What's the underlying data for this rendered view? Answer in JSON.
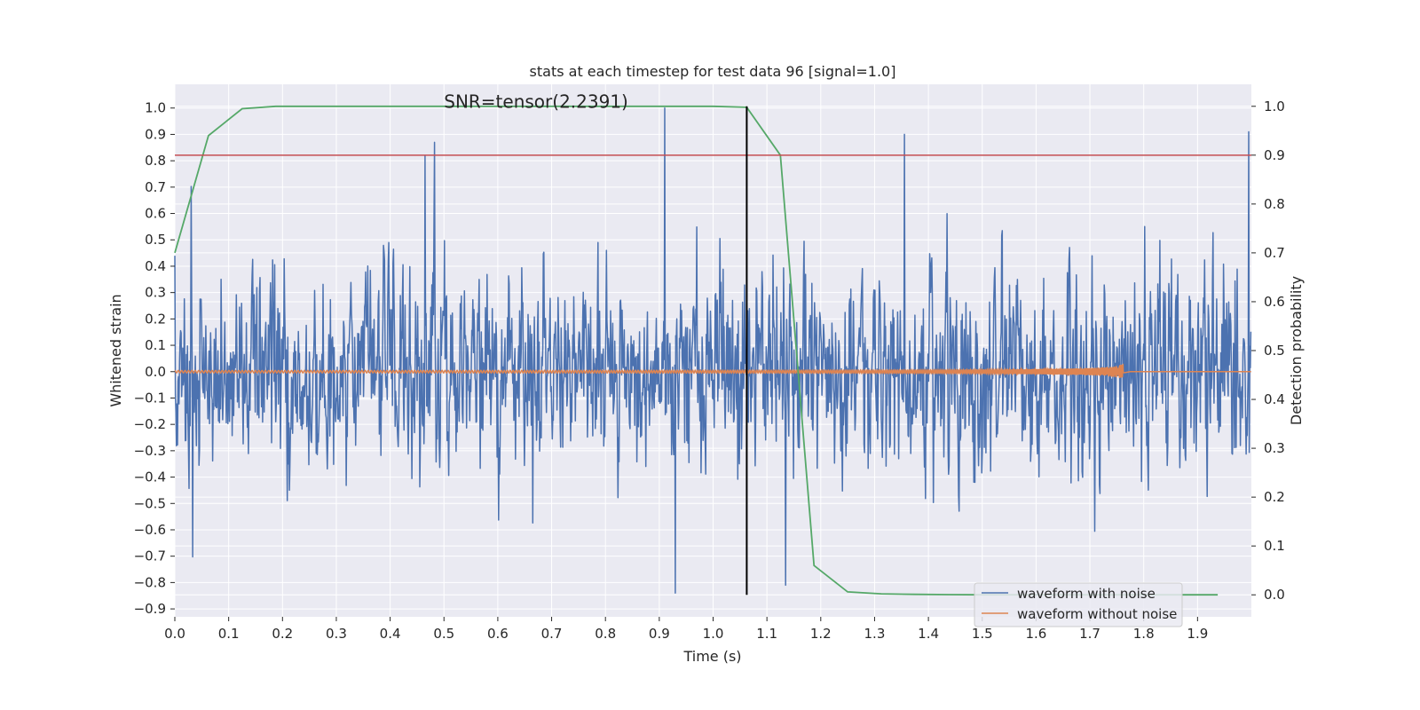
{
  "chart_data": {
    "type": "line",
    "title": "stats at each timestep for test data 96 [signal=1.0]",
    "annotation": "SNR=tensor(2.2391)",
    "annotation_at": {
      "x": 0.5,
      "y": 1.0
    },
    "xlabel": "Time (s)",
    "ylabel_left": "Whitened strain",
    "ylabel_right": "Detection probability",
    "xlim": [
      0,
      2.0
    ],
    "ylim_left": [
      -0.93,
      1.09
    ],
    "ylim_right": [
      -0.045,
      1.045
    ],
    "x_ticks": [
      0.0,
      0.1,
      0.2,
      0.3,
      0.4,
      0.5,
      0.6,
      0.7,
      0.8,
      0.9,
      1.0,
      1.1,
      1.2,
      1.3,
      1.4,
      1.5,
      1.6,
      1.7,
      1.8,
      1.9
    ],
    "x_tick_labels": [
      "0.0",
      "0.1",
      "0.2",
      "0.3",
      "0.4",
      "0.5",
      "0.6",
      "0.7",
      "0.8",
      "0.9",
      "1.0",
      "1.1",
      "1.2",
      "1.3",
      "1.4",
      "1.5",
      "1.6",
      "1.7",
      "1.8",
      "1.9"
    ],
    "y_left_ticks": [
      -0.9,
      -0.8,
      -0.7,
      -0.6,
      -0.5,
      -0.4,
      -0.3,
      -0.2,
      -0.1,
      0.0,
      0.1,
      0.2,
      0.3,
      0.4,
      0.5,
      0.6,
      0.7,
      0.8,
      0.9,
      1.0
    ],
    "y_left_tick_labels": [
      "−0.9",
      "−0.8",
      "−0.7",
      "−0.6",
      "−0.5",
      "−0.4",
      "−0.3",
      "−0.2",
      "−0.1",
      "0.0",
      "0.1",
      "0.2",
      "0.3",
      "0.4",
      "0.5",
      "0.6",
      "0.7",
      "0.8",
      "0.9",
      "1.0"
    ],
    "y_right_ticks": [
      0.0,
      0.1,
      0.2,
      0.3,
      0.4,
      0.5,
      0.6,
      0.7,
      0.8,
      0.9,
      1.0
    ],
    "y_right_tick_labels": [
      "0.0",
      "0.1",
      "0.2",
      "0.3",
      "0.4",
      "0.5",
      "0.6",
      "0.7",
      "0.8",
      "0.9",
      "1.0"
    ],
    "grid": true,
    "legend_position": "lower-right",
    "colors": {
      "noise": "#4c72b0",
      "clean": "#dd8452",
      "probability": "#55a868",
      "threshold": "#c44e52",
      "marker": "#000000",
      "background": "#eaeaf2",
      "grid": "#ffffff"
    },
    "series": [
      {
        "name": "waveform with noise",
        "axis": "left",
        "sample_count": 2048,
        "amplitude_range": [
          -0.84,
          1.0
        ],
        "notable_peaks": [
          {
            "x": 0.0,
            "y": 0.44
          },
          {
            "x": 0.465,
            "y": 0.82
          },
          {
            "x": 0.91,
            "y": 1.0
          },
          {
            "x": 0.93,
            "y": -0.84
          },
          {
            "x": 1.135,
            "y": -0.81
          },
          {
            "x": 1.355,
            "y": 0.9
          },
          {
            "x": 1.995,
            "y": 0.91
          }
        ]
      },
      {
        "name": "waveform without noise",
        "axis": "left",
        "amplitude_range": [
          -0.09,
          0.09
        ],
        "merger_time": 1.765
      },
      {
        "name": "detection probability",
        "axis": "right",
        "x": [
          0.0,
          0.0625,
          0.125,
          0.1875,
          0.25,
          0.3125,
          0.375,
          0.4375,
          0.5,
          0.5625,
          0.625,
          0.6875,
          0.75,
          0.8125,
          0.875,
          0.9375,
          1.0,
          1.0625,
          1.125,
          1.1875,
          1.25,
          1.3125,
          1.375,
          1.4375,
          1.5,
          1.5625,
          1.625,
          1.6875,
          1.75,
          1.8125,
          1.875,
          1.9375
        ],
        "values": [
          0.7,
          0.94,
          0.995,
          1.0,
          1.0,
          1.0,
          1.0,
          1.0,
          1.0,
          1.0,
          1.0,
          1.0,
          1.0,
          1.0,
          1.0,
          1.0,
          1.0,
          0.998,
          0.9,
          0.06,
          0.006,
          0.002,
          0.001,
          0.0005,
          0.0,
          0.0,
          0.0,
          0.0,
          0.0,
          0.0,
          0.0,
          0.0
        ]
      }
    ],
    "threshold_line": {
      "axis": "right",
      "y": 0.9
    },
    "marker_line": {
      "x": 1.0625,
      "y_range_right": [
        0.0,
        1.0
      ]
    }
  }
}
